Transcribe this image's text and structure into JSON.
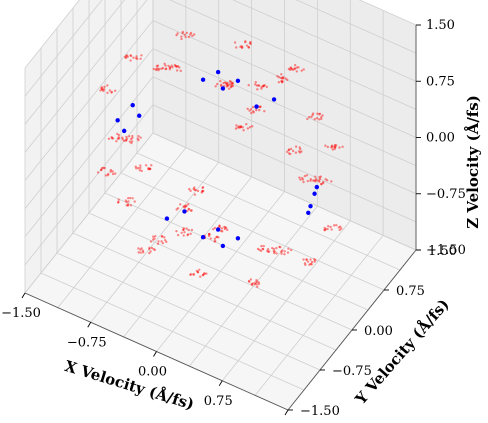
{
  "chart_data": {
    "type": "scatter",
    "projection": "3d",
    "grid": true,
    "xlabel": "X Velocity (Å/fs)",
    "ylabel": "Y Velocity (Å/fs)",
    "zlabel": "Z Velocity (Å/fs)",
    "xlim": [
      -1.5,
      1.5
    ],
    "ylim": [
      -1.5,
      1.5
    ],
    "zlim": [
      -1.5,
      1.5
    ],
    "xticks": [
      "−1.50",
      "−0.75",
      "0.00",
      "0.75",
      "1.50"
    ],
    "yticks": [
      "1.50",
      "0.75",
      "0.00",
      "−0.75",
      "−1.50"
    ],
    "zticks": [
      "1.50",
      "0.75",
      "0.00",
      "−0.75",
      "−1.50"
    ],
    "colors": {
      "scatter": "#ff0000",
      "centers": "#0000ff",
      "pane": "#f2f2f2",
      "grid": "#cfcfcf"
    },
    "cluster_centers": [
      {
        "x": 0.0,
        "y": 0.0,
        "z": 1.05
      },
      {
        "x": 0.0,
        "y": 0.0,
        "z": -1.05
      },
      {
        "x": -1.0,
        "y": 0.0,
        "z": 0.0
      },
      {
        "x": 1.0,
        "y": 0.0,
        "z": 0.0
      },
      {
        "x": 0.0,
        "y": 1.0,
        "z": 0.0
      },
      {
        "x": 0.0,
        "y": -1.0,
        "z": 0.0
      }
    ],
    "series": [
      {
        "marker": "red-dot",
        "points": [
          {
            "x": -1.15,
            "y": 0.3,
            "z": 0.55
          },
          {
            "x": -1.15,
            "y": -0.3,
            "z": 0.55
          },
          {
            "x": -1.15,
            "y": 0.3,
            "z": -0.55
          },
          {
            "x": -1.15,
            "y": -0.3,
            "z": -0.55
          },
          {
            "x": 1.15,
            "y": 0.3,
            "z": 0.55
          },
          {
            "x": 1.15,
            "y": -0.3,
            "z": 0.55
          },
          {
            "x": 1.15,
            "y": 0.3,
            "z": -0.55
          },
          {
            "x": 1.15,
            "y": -0.3,
            "z": -0.55
          },
          {
            "x": 0.3,
            "y": 1.15,
            "z": 0.55
          },
          {
            "x": -0.3,
            "y": 1.15,
            "z": 0.55
          },
          {
            "x": 0.3,
            "y": 1.15,
            "z": -0.55
          },
          {
            "x": -0.3,
            "y": 1.15,
            "z": -0.55
          },
          {
            "x": 0.3,
            "y": -1.15,
            "z": 0.55
          },
          {
            "x": -0.3,
            "y": -1.15,
            "z": 0.55
          },
          {
            "x": 0.3,
            "y": -1.15,
            "z": -0.55
          },
          {
            "x": -0.3,
            "y": -1.15,
            "z": -0.55
          },
          {
            "x": 0.55,
            "y": 0.3,
            "z": 1.15
          },
          {
            "x": -0.55,
            "y": 0.3,
            "z": 1.15
          },
          {
            "x": 0.55,
            "y": -0.3,
            "z": 1.15
          },
          {
            "x": -0.55,
            "y": -0.3,
            "z": 1.15
          },
          {
            "x": 0.55,
            "y": 0.3,
            "z": -1.15
          },
          {
            "x": -0.55,
            "y": 0.3,
            "z": -1.15
          },
          {
            "x": 0.55,
            "y": -0.3,
            "z": -1.15
          },
          {
            "x": -0.55,
            "y": -0.3,
            "z": -1.15
          },
          {
            "x": -0.85,
            "y": 0.65,
            "z": 0.3
          },
          {
            "x": -0.85,
            "y": -0.65,
            "z": 0.3
          },
          {
            "x": 0.85,
            "y": 0.65,
            "z": -0.3
          },
          {
            "x": 0.85,
            "y": -0.65,
            "z": -0.3
          },
          {
            "x": 0.65,
            "y": 0.85,
            "z": 0.3
          },
          {
            "x": -0.65,
            "y": -0.85,
            "z": -0.3
          },
          {
            "x": 0.3,
            "y": 0.25,
            "z": 0.95
          },
          {
            "x": -0.3,
            "y": -0.25,
            "z": -0.95
          },
          {
            "x": 0.05,
            "y": 0.0,
            "z": 1.0
          },
          {
            "x": -0.05,
            "y": 0.05,
            "z": -1.0
          },
          {
            "x": 0.1,
            "y": -0.05,
            "z": 1.1
          },
          {
            "x": -0.1,
            "y": 0.0,
            "z": -1.1
          }
        ]
      },
      {
        "marker": "blue-dot",
        "points": [
          {
            "x": -0.15,
            "y": -0.1,
            "z": 1.05
          },
          {
            "x": 0.15,
            "y": 0.1,
            "z": 1.05
          },
          {
            "x": 0.1,
            "y": -0.15,
            "z": 1.1
          },
          {
            "x": -0.1,
            "y": 0.15,
            "z": 1.0
          },
          {
            "x": -0.15,
            "y": -0.1,
            "z": -1.05
          },
          {
            "x": 0.15,
            "y": 0.1,
            "z": -1.05
          },
          {
            "x": 0.1,
            "y": -0.15,
            "z": -1.0
          },
          {
            "x": -0.1,
            "y": 0.15,
            "z": -1.1
          },
          {
            "x": -1.05,
            "y": 0.1,
            "z": 0.1
          },
          {
            "x": -1.05,
            "y": -0.1,
            "z": -0.1
          },
          {
            "x": -1.0,
            "y": 0.15,
            "z": -0.05
          },
          {
            "x": -1.1,
            "y": -0.15,
            "z": 0.05
          },
          {
            "x": 1.05,
            "y": 0.1,
            "z": 0.1
          },
          {
            "x": 1.05,
            "y": -0.1,
            "z": -0.1
          },
          {
            "x": 1.0,
            "y": 0.15,
            "z": -0.05
          },
          {
            "x": 1.1,
            "y": -0.15,
            "z": 0.05
          },
          {
            "x": 0.1,
            "y": 1.05,
            "z": 0.1
          },
          {
            "x": -0.1,
            "y": 1.05,
            "z": -0.1
          },
          {
            "x": 0.1,
            "y": -1.05,
            "z": 0.1
          },
          {
            "x": -0.1,
            "y": -1.05,
            "z": -0.1
          }
        ]
      }
    ]
  }
}
